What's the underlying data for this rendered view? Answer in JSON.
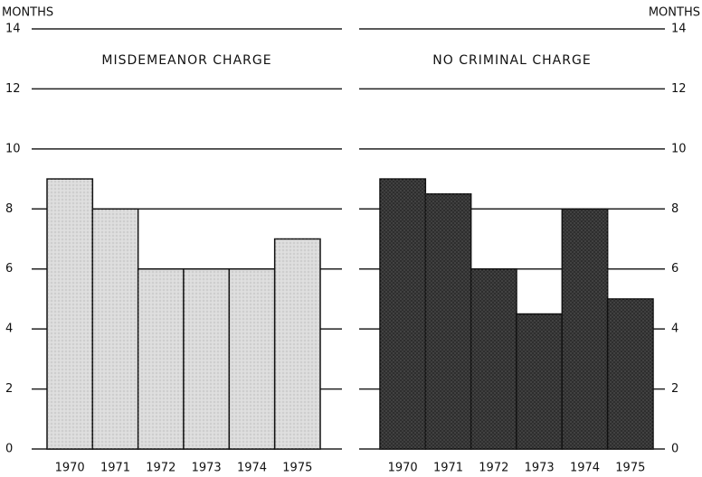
{
  "chart_data": [
    {
      "type": "bar",
      "title": "MISDEMEANOR CHARGE",
      "y_label": "MONTHS",
      "axis_side": "left",
      "categories": [
        "1970",
        "1971",
        "1972",
        "1973",
        "1974",
        "1975"
      ],
      "values": [
        9,
        8,
        6,
        6,
        6,
        7
      ],
      "color": "#dcdcdc",
      "ylim": [
        0,
        14
      ],
      "yticks": [
        0,
        2,
        4,
        6,
        8,
        10,
        12,
        14
      ],
      "grid": true
    },
    {
      "type": "bar",
      "title": "NO CRIMINAL CHARGE",
      "y_label": "MONTHS",
      "axis_side": "right",
      "categories": [
        "1970",
        "1971",
        "1972",
        "1973",
        "1974",
        "1975"
      ],
      "values": [
        9,
        8.5,
        6,
        4.5,
        8,
        5
      ],
      "color": "#2e2e2e",
      "ylim": [
        0,
        14
      ],
      "yticks": [
        0,
        2,
        4,
        6,
        8,
        10,
        12,
        14
      ],
      "grid": true
    }
  ]
}
